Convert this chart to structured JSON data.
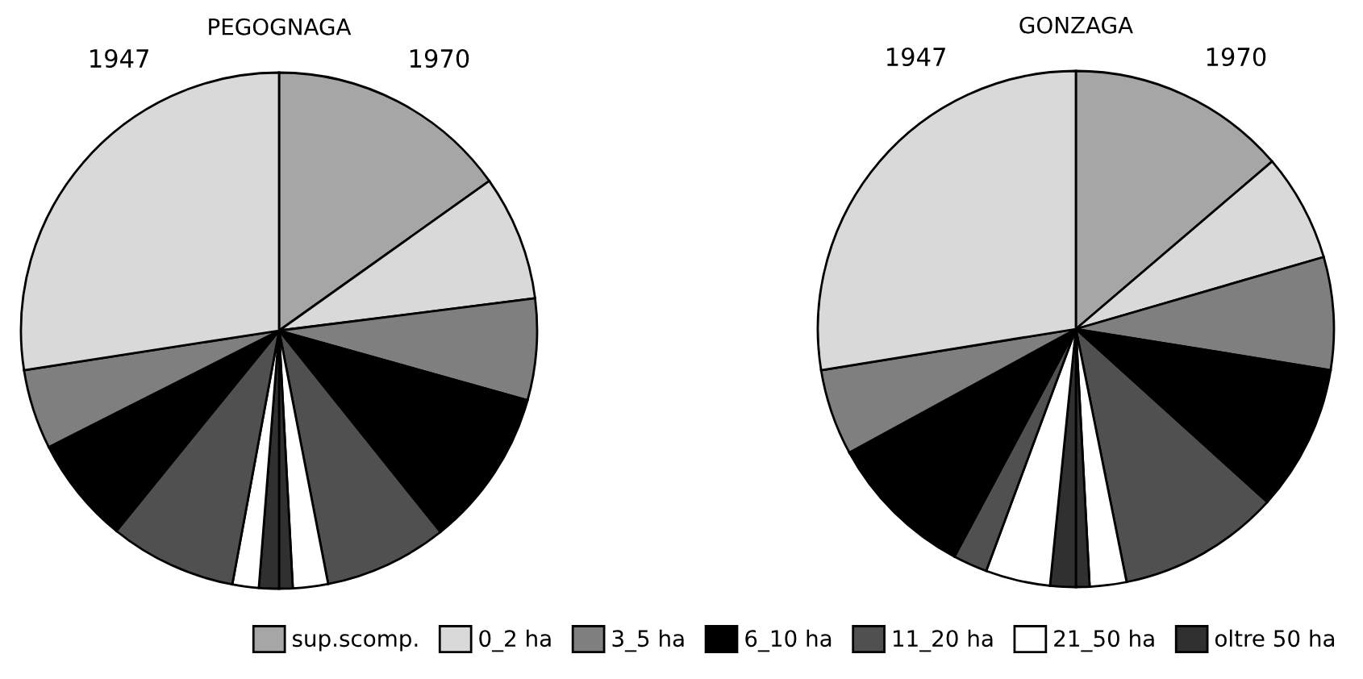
{
  "chart_data": [
    {
      "type": "pie",
      "title": "PEGOGNAGA",
      "legend": "bottom",
      "annotations": [
        "1947",
        "1970"
      ],
      "categories": [
        "sup.scomp.",
        "0_2 ha",
        "3_5 ha",
        "6_10 ha",
        "11_20 ha",
        "21_50 ha",
        "oltre 50 ha",
        null,
        null,
        null,
        null,
        null,
        null
      ],
      "values": [
        15.15,
        7.85,
        6.35,
        9.9,
        7.7,
        2.2,
        0.85,
        1.25,
        1.65,
        7.95,
        6.7,
        5.0,
        27.45
      ],
      "colors": [
        "#a6a6a6",
        "#d9d9d9",
        "#7f7f7f",
        "#000000",
        "#505050",
        "#ffffff",
        "#303030",
        "#303030",
        "#ffffff",
        "#505050",
        "#000000",
        "#7f7f7f",
        "#d9d9d9"
      ]
    },
    {
      "type": "pie",
      "title": "GONZAGA",
      "annotations": [
        "1947",
        "1970"
      ],
      "categories": [
        null,
        null,
        null,
        null,
        null,
        null,
        null,
        null,
        null,
        null,
        null,
        null,
        null
      ],
      "values": [
        13.75,
        6.75,
        7.05,
        9.15,
        10.15,
        2.3,
        0.85,
        1.6,
        4.05,
        2.15,
        9.25,
        5.4,
        27.55
      ],
      "colors": [
        "#a6a6a6",
        "#d9d9d9",
        "#7f7f7f",
        "#000000",
        "#505050",
        "#ffffff",
        "#303030",
        "#303030",
        "#ffffff",
        "#505050",
        "#000000",
        "#7f7f7f",
        "#d9d9d9"
      ]
    }
  ]
}
